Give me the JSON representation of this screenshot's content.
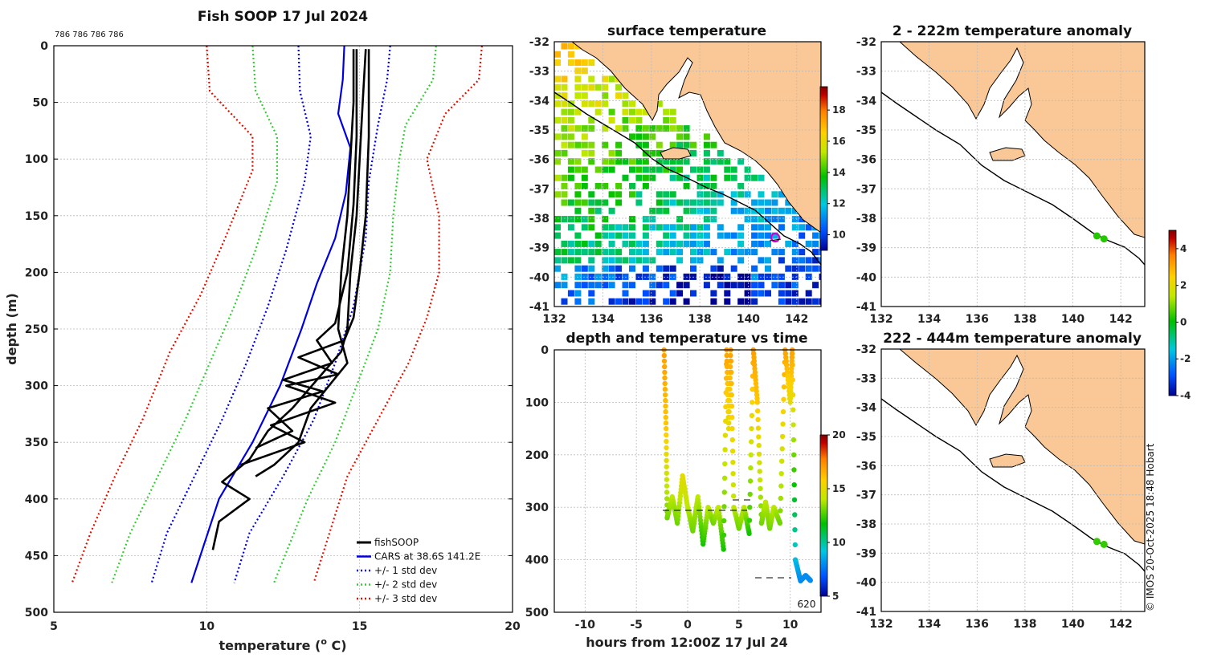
{
  "colors": {
    "land": "#f9c896",
    "sst_gradient": [
      "#00008f",
      "#0050ff",
      "#00c8e0",
      "#00c000",
      "#c0e800",
      "#ffd000",
      "#ff8000",
      "#c00000",
      "#800000"
    ],
    "profile": "#000000",
    "cars": "#0000dd",
    "std1": "#0000dd",
    "std2": "#33cc33",
    "std3": "#dd1100"
  },
  "chart_data": [
    {
      "id": "profile",
      "type": "line",
      "title": "Fish SOOP 17 Jul 2024",
      "subtitle": "786 786 786 786",
      "xlabel": "temperature (",
      "xlabel_sup": "o",
      "xlabel_tail": " C)",
      "ylabel": "depth (m)",
      "xlim": [
        5,
        20
      ],
      "ylim": [
        0,
        500
      ],
      "xticks": [
        "5",
        "10",
        "15",
        "20"
      ],
      "yticks": [
        "0",
        "50",
        "100",
        "150",
        "200",
        "250",
        "300",
        "350",
        "400",
        "450",
        "500"
      ],
      "legend": {
        "position": "bottom-right",
        "entries": [
          "fishSOOP",
          "CARS at 38.6S 141.2E",
          "+/- 1 std dev",
          "+/- 2 std dev",
          "+/- 3 std dev"
        ]
      },
      "series": [
        {
          "name": "CARS at 38.6S 141.2E",
          "style": "solid",
          "color": "#0000dd",
          "points": [
            [
              14.5,
              0
            ],
            [
              14.45,
              30
            ],
            [
              14.3,
              60
            ],
            [
              14.7,
              90
            ],
            [
              14.55,
              130
            ],
            [
              14.2,
              170
            ],
            [
              13.6,
              210
            ],
            [
              13.1,
              250
            ],
            [
              12.4,
              300
            ],
            [
              11.5,
              350
            ],
            [
              10.4,
              400
            ],
            [
              9.5,
              474
            ]
          ]
        },
        {
          "name": "+/- 1 std dev low",
          "style": "dotted",
          "color": "#0000dd",
          "points": [
            [
              13.0,
              0
            ],
            [
              13.05,
              40
            ],
            [
              13.4,
              80
            ],
            [
              13.2,
              120
            ],
            [
              12.6,
              180
            ],
            [
              12.0,
              230
            ],
            [
              11.3,
              280
            ],
            [
              10.5,
              330
            ],
            [
              9.6,
              380
            ],
            [
              8.7,
              430
            ],
            [
              8.2,
              474
            ]
          ]
        },
        {
          "name": "+/- 1 std dev high",
          "style": "dotted",
          "color": "#0000dd",
          "points": [
            [
              16.0,
              0
            ],
            [
              15.9,
              30
            ],
            [
              15.6,
              70
            ],
            [
              15.3,
              120
            ],
            [
              15.2,
              170
            ],
            [
              14.8,
              230
            ],
            [
              14.2,
              280
            ],
            [
              13.5,
              330
            ],
            [
              12.5,
              380
            ],
            [
              11.4,
              430
            ],
            [
              10.9,
              474
            ]
          ]
        },
        {
          "name": "+/- 2 std dev low",
          "style": "dotted",
          "color": "#33cc33",
          "points": [
            [
              11.5,
              0
            ],
            [
              11.6,
              40
            ],
            [
              12.3,
              80
            ],
            [
              12.3,
              120
            ],
            [
              11.6,
              180
            ],
            [
              10.9,
              230
            ],
            [
              10.1,
              280
            ],
            [
              9.3,
              330
            ],
            [
              8.4,
              380
            ],
            [
              7.5,
              430
            ],
            [
              6.9,
              474
            ]
          ]
        },
        {
          "name": "+/- 2 std dev high",
          "style": "dotted",
          "color": "#33cc33",
          "points": [
            [
              17.5,
              0
            ],
            [
              17.4,
              30
            ],
            [
              16.5,
              70
            ],
            [
              16.3,
              100
            ],
            [
              16.1,
              150
            ],
            [
              16.0,
              200
            ],
            [
              15.6,
              250
            ],
            [
              14.9,
              300
            ],
            [
              14.2,
              350
            ],
            [
              13.3,
              400
            ],
            [
              12.2,
              474
            ]
          ]
        },
        {
          "name": "+/- 3 std dev low",
          "style": "dotted",
          "color": "#dd1100",
          "points": [
            [
              10.0,
              0
            ],
            [
              10.1,
              40
            ],
            [
              11.5,
              80
            ],
            [
              11.5,
              110
            ],
            [
              10.6,
              170
            ],
            [
              9.8,
              220
            ],
            [
              8.8,
              270
            ],
            [
              7.9,
              330
            ],
            [
              7.0,
              380
            ],
            [
              6.2,
              430
            ],
            [
              5.6,
              474
            ]
          ]
        },
        {
          "name": "+/- 3 std dev high",
          "style": "dotted",
          "color": "#dd1100",
          "points": [
            [
              19.0,
              0
            ],
            [
              18.9,
              30
            ],
            [
              17.8,
              60
            ],
            [
              17.2,
              100
            ],
            [
              17.6,
              150
            ],
            [
              17.6,
              200
            ],
            [
              17.2,
              240
            ],
            [
              16.6,
              280
            ],
            [
              15.6,
              330
            ],
            [
              14.6,
              380
            ],
            [
              13.5,
              474
            ]
          ]
        },
        {
          "name": "fishSOOP cast 1",
          "style": "solid",
          "color": "#000000",
          "points": [
            [
              14.8,
              3
            ],
            [
              14.8,
              50
            ],
            [
              14.7,
              100
            ],
            [
              14.6,
              150
            ],
            [
              14.4,
              200
            ],
            [
              14.3,
              250
            ],
            [
              14.6,
              280
            ],
            [
              14.0,
              300
            ],
            [
              13.4,
              320
            ],
            [
              13.0,
              350
            ],
            [
              12.2,
              370
            ],
            [
              11.6,
              380
            ]
          ]
        },
        {
          "name": "fishSOOP cast 2",
          "style": "solid",
          "color": "#000000",
          "points": [
            [
              15.2,
              3
            ],
            [
              15.1,
              50
            ],
            [
              15.0,
              100
            ],
            [
              14.9,
              150
            ],
            [
              14.7,
              200
            ],
            [
              14.6,
              250
            ],
            [
              14.4,
              270
            ],
            [
              13.6,
              295
            ],
            [
              12.8,
              320
            ],
            [
              12.0,
              340
            ],
            [
              11.4,
              365
            ],
            [
              10.5,
              385
            ],
            [
              11.4,
              400
            ],
            [
              10.4,
              420
            ],
            [
              10.2,
              445
            ]
          ]
        },
        {
          "name": "fishSOOP cast 3",
          "style": "solid",
          "color": "#000000",
          "points": [
            [
              15.3,
              3
            ],
            [
              15.3,
              80
            ],
            [
              15.2,
              150
            ],
            [
              15.0,
              200
            ],
            [
              14.8,
              240
            ],
            [
              14.5,
              260
            ],
            [
              13.0,
              275
            ],
            [
              14.3,
              290
            ],
            [
              12.6,
              300
            ],
            [
              14.2,
              315
            ],
            [
              12.1,
              335
            ],
            [
              13.2,
              350
            ],
            [
              11.1,
              370
            ]
          ]
        },
        {
          "name": "fishSOOP cast 4",
          "style": "solid",
          "color": "#000000",
          "points": [
            [
              14.9,
              3
            ],
            [
              14.9,
              80
            ],
            [
              14.8,
              140
            ],
            [
              14.6,
              200
            ],
            [
              14.2,
              245
            ],
            [
              13.6,
              260
            ],
            [
              14.1,
              280
            ],
            [
              12.5,
              295
            ],
            [
              13.8,
              305
            ],
            [
              12.0,
              320
            ],
            [
              12.8,
              340
            ],
            [
              11.6,
              355
            ]
          ]
        }
      ]
    },
    {
      "id": "sst",
      "type": "heatmap",
      "title": "surface temperature",
      "xlim": [
        132,
        143
      ],
      "ylim": [
        -41,
        -32
      ],
      "xticks": [
        "132",
        "134",
        "136",
        "138",
        "140",
        "142"
      ],
      "yticks": [
        "-32",
        "-33",
        "-34",
        "-35",
        "-36",
        "-37",
        "-38",
        "-39",
        "-40",
        "-41"
      ],
      "colorbar": {
        "range": [
          9,
          19.5
        ],
        "ticks": [
          "10",
          "12",
          "14",
          "16",
          "18"
        ]
      },
      "marker": {
        "lon": 141.2,
        "lat": -38.6
      }
    },
    {
      "id": "depth_time",
      "type": "scatter",
      "title": "depth and temperature vs time",
      "xlabel": "hours from 12:00Z 17 Jul 24",
      "xlim": [
        -13,
        13
      ],
      "ylim": [
        0,
        500
      ],
      "xticks": [
        "-10",
        "-5",
        "0",
        "5",
        "10"
      ],
      "yticks": [
        "0",
        "100",
        "200",
        "300",
        "400",
        "500"
      ],
      "colorbar": {
        "range": [
          5,
          20
        ],
        "ticks": [
          "5",
          "10",
          "15",
          "20"
        ]
      },
      "annotation": "620",
      "points": [
        [
          -2.3,
          0,
          17
        ],
        [
          -2.1,
          150,
          16
        ],
        [
          -2.0,
          320,
          13
        ],
        [
          -1.5,
          280,
          14
        ],
        [
          -1.0,
          330,
          13
        ],
        [
          -0.5,
          240,
          15
        ],
        [
          0.0,
          300,
          14
        ],
        [
          0.5,
          345,
          13
        ],
        [
          1.0,
          280,
          14
        ],
        [
          1.5,
          370,
          12
        ],
        [
          2.0,
          300,
          14
        ],
        [
          2.5,
          330,
          13
        ],
        [
          3.0,
          300,
          14
        ],
        [
          3.5,
          380,
          12
        ],
        [
          3.8,
          0,
          17
        ],
        [
          4.0,
          150,
          15
        ],
        [
          4.2,
          0,
          17
        ],
        [
          4.5,
          300,
          14
        ],
        [
          5.0,
          340,
          13
        ],
        [
          5.5,
          300,
          14
        ],
        [
          6.0,
          350,
          12
        ],
        [
          6.4,
          0,
          17
        ],
        [
          6.8,
          100,
          16
        ],
        [
          7.2,
          330,
          13
        ],
        [
          7.6,
          290,
          14
        ],
        [
          8.0,
          340,
          13
        ],
        [
          8.4,
          300,
          14
        ],
        [
          9.0,
          330,
          13
        ],
        [
          9.5,
          0,
          17
        ],
        [
          10.0,
          100,
          15
        ],
        [
          10.2,
          0,
          17
        ],
        [
          10.5,
          400,
          9
        ],
        [
          11.0,
          440,
          8
        ],
        [
          11.5,
          430,
          8
        ],
        [
          12.0,
          440,
          8
        ]
      ]
    },
    {
      "id": "anom1",
      "type": "scatter",
      "title": "2 - 222m temperature anomaly",
      "xlim": [
        132,
        143
      ],
      "ylim": [
        -41,
        -32
      ],
      "xticks": [
        "132",
        "134",
        "136",
        "138",
        "140",
        "142"
      ],
      "yticks": [
        "-32",
        "-33",
        "-34",
        "-35",
        "-36",
        "-37",
        "-38",
        "-39",
        "-40",
        "-41"
      ],
      "points": [
        [
          141.0,
          -38.6,
          0.3
        ],
        [
          141.3,
          -38.7,
          0.3
        ]
      ]
    },
    {
      "id": "anom2",
      "type": "scatter",
      "title": "222 - 444m temperature anomaly",
      "xlim": [
        132,
        143
      ],
      "ylim": [
        -41,
        -32
      ],
      "xticks": [
        "132",
        "134",
        "136",
        "138",
        "140",
        "142"
      ],
      "yticks": [
        "-32",
        "-33",
        "-34",
        "-35",
        "-36",
        "-37",
        "-38",
        "-39",
        "-40",
        "-41"
      ],
      "colorbar": {
        "range": [
          -4,
          5
        ],
        "ticks": [
          "-4",
          "-2",
          "0",
          "2",
          "4"
        ]
      },
      "points": [
        [
          141.0,
          -38.6,
          0.4
        ],
        [
          141.3,
          -38.7,
          0.4
        ]
      ]
    }
  ],
  "credit": "© IMOS 20-Oct-2025 18:48 Hobart"
}
